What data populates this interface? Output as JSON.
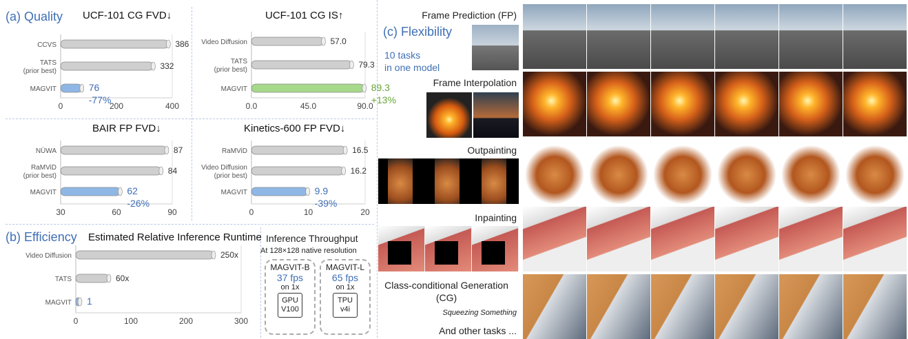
{
  "sections": {
    "quality": "(a) Quality",
    "efficiency": "(b) Efficiency",
    "flexibility": "(c) Flexibility",
    "flex_note_1": "10 tasks",
    "flex_note_2": "in one model"
  },
  "chart_data": [
    {
      "id": "ucf_fvd",
      "type": "bar",
      "orientation": "horizontal",
      "title": "UCF-101 CG FVD↓",
      "categories": [
        "CCVS",
        "TATS (prior best)",
        "MAGVIT"
      ],
      "values": [
        386,
        332,
        76
      ],
      "value_labels": [
        "386",
        "332",
        "76"
      ],
      "improvement": "-77%",
      "xlim": [
        0,
        400
      ],
      "ticks": [
        "0",
        "200",
        "400"
      ]
    },
    {
      "id": "ucf_is",
      "type": "bar",
      "orientation": "horizontal",
      "title": "UCF-101 CG IS↑",
      "categories": [
        "Video Diffusion",
        "TATS (prior best)",
        "MAGVIT"
      ],
      "values": [
        57.0,
        79.3,
        89.3
      ],
      "value_labels": [
        "57.0",
        "79.3",
        "89.3"
      ],
      "improvement": "+13%",
      "xlim": [
        0,
        90
      ],
      "ticks": [
        "0.0",
        "45.0",
        "90.0"
      ]
    },
    {
      "id": "bair_fvd",
      "type": "bar",
      "orientation": "horizontal",
      "title": "BAIR FP FVD↓",
      "categories": [
        "NÜWA",
        "RaMViD (prior best)",
        "MAGVIT"
      ],
      "values": [
        87,
        84,
        62
      ],
      "value_labels": [
        "87",
        "84",
        "62"
      ],
      "improvement": "-26%",
      "xlim": [
        30,
        90
      ],
      "ticks": [
        "30",
        "60",
        "90"
      ]
    },
    {
      "id": "k600_fvd",
      "type": "bar",
      "orientation": "horizontal",
      "title": "Kinetics-600 FP FVD↓",
      "categories": [
        "RaMViD",
        "Video Diffusion (prior best)",
        "MAGVIT"
      ],
      "values": [
        16.5,
        16.2,
        9.9
      ],
      "value_labels": [
        "16.5",
        "16.2",
        "9.9"
      ],
      "improvement": "-39%",
      "xlim": [
        0,
        20
      ],
      "ticks": [
        "0",
        "10",
        "20"
      ]
    },
    {
      "id": "runtime",
      "type": "bar",
      "orientation": "horizontal",
      "title": "Estimated Relative Inference Runtime",
      "categories": [
        "Video Diffusion",
        "TATS",
        "MAGVIT"
      ],
      "values": [
        250,
        60,
        1
      ],
      "value_labels": [
        "250x",
        "60x",
        "1"
      ],
      "xlim": [
        0,
        300
      ],
      "ticks": [
        "0",
        "100",
        "200",
        "300"
      ]
    }
  ],
  "throughput": {
    "title": "Inference Throughput",
    "subtitle": "At 128×128 native resolution",
    "chips": [
      {
        "model": "MAGVIT-B",
        "fps": "37 fps",
        "on": "on 1x",
        "hw1": "GPU",
        "hw2": "V100"
      },
      {
        "model": "MAGVIT-L",
        "fps": "65 fps",
        "on": "on 1x",
        "hw1": "TPU",
        "hw2": "v4i"
      }
    ]
  },
  "tasks": [
    {
      "label": "Frame Prediction (FP)",
      "sub": ""
    },
    {
      "label": "Frame Interpolation",
      "sub": ""
    },
    {
      "label": "Outpainting",
      "sub": ""
    },
    {
      "label": "Inpainting",
      "sub": ""
    },
    {
      "label": "Class-conditional Generation",
      "label2": "(CG)",
      "sub": "Squeezing Something"
    }
  ],
  "other_tasks": "And other tasks ...",
  "colors": {
    "accent": "#3f6fb5",
    "green": "#6aa63a",
    "gray_bar": "#c8c8c8",
    "blue_bar": "#8fb7e6",
    "green_bar": "#a6d98a"
  }
}
